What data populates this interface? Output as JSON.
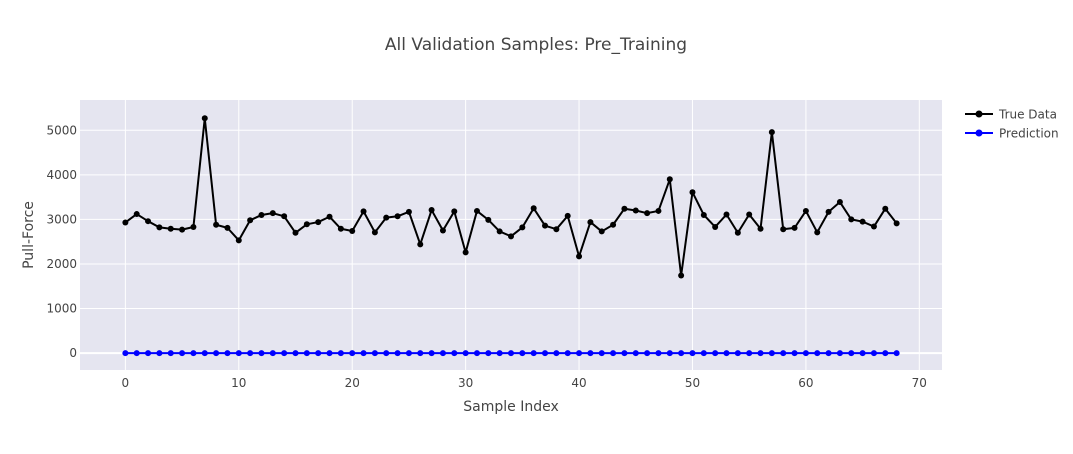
{
  "chart_data": {
    "type": "line",
    "title": "All Validation Samples: Pre_Training",
    "xlabel": "Sample Index",
    "ylabel": "Pull-Force",
    "xlim": [
      -4,
      72
    ],
    "ylim": [
      -380,
      5680
    ],
    "x_ticks": [
      0,
      10,
      20,
      30,
      40,
      50,
      60,
      70
    ],
    "y_ticks": [
      0,
      1000,
      2000,
      3000,
      4000,
      5000
    ],
    "grid": true,
    "legend_position": "top-right",
    "colors": {
      "plot_bg": "#e5e5f0",
      "grid": "#ffffff",
      "true": "#000000",
      "prediction": "#0000ff"
    },
    "x": [
      0,
      1,
      2,
      3,
      4,
      5,
      6,
      7,
      8,
      9,
      10,
      11,
      12,
      13,
      14,
      15,
      16,
      17,
      18,
      19,
      20,
      21,
      22,
      23,
      24,
      25,
      26,
      27,
      28,
      29,
      30,
      31,
      32,
      33,
      34,
      35,
      36,
      37,
      38,
      39,
      40,
      41,
      42,
      43,
      44,
      45,
      46,
      47,
      48,
      49,
      50,
      51,
      52,
      53,
      54,
      55,
      56,
      57,
      58,
      59,
      60,
      61,
      62,
      63,
      64,
      65,
      66,
      67,
      68
    ],
    "series": [
      {
        "name": "True Data",
        "color": "#000000",
        "values": [
          2930,
          3120,
          2960,
          2820,
          2790,
          2770,
          2830,
          5270,
          2880,
          2810,
          2530,
          2980,
          3100,
          3140,
          3070,
          2700,
          2890,
          2940,
          3060,
          2790,
          2740,
          3180,
          2710,
          3040,
          3070,
          3170,
          2440,
          3210,
          2750,
          3180,
          2260,
          3190,
          2990,
          2730,
          2620,
          2820,
          3250,
          2860,
          2780,
          3080,
          2170,
          2940,
          2730,
          2880,
          3240,
          3200,
          3140,
          3190,
          3900,
          1740,
          3610,
          3100,
          2830,
          3110,
          2700,
          3110,
          2790,
          4960,
          2780,
          2810,
          3190,
          2710,
          3170,
          3390,
          3000,
          2950,
          2840,
          3240,
          2910
        ]
      },
      {
        "name": "Prediction",
        "color": "#0000ff",
        "values": [
          0,
          0,
          0,
          0,
          0,
          0,
          0,
          0,
          0,
          0,
          0,
          0,
          0,
          0,
          0,
          0,
          0,
          0,
          0,
          0,
          0,
          0,
          0,
          0,
          0,
          0,
          0,
          0,
          0,
          0,
          0,
          0,
          0,
          0,
          0,
          0,
          0,
          0,
          0,
          0,
          0,
          0,
          0,
          0,
          0,
          0,
          0,
          0,
          0,
          0,
          0,
          0,
          0,
          0,
          0,
          0,
          0,
          0,
          0,
          0,
          0,
          0,
          0,
          0,
          0,
          0,
          0,
          0,
          0
        ]
      }
    ]
  }
}
